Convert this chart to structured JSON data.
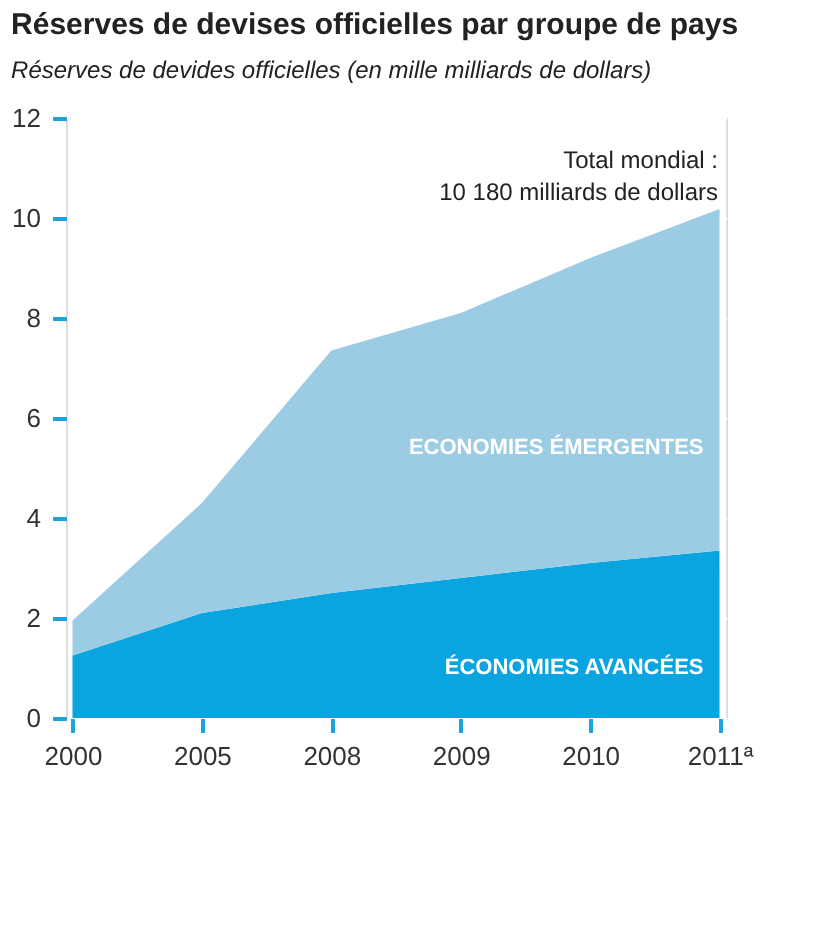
{
  "chart_data": {
    "type": "area",
    "title": "Réserves de devises officielles par groupe de pays",
    "ylabel": "Réserves de devides officielles (en mille milliards de dollars)",
    "categories": [
      "2000",
      "2005",
      "2008",
      "2009",
      "2010",
      "2011ª"
    ],
    "stacked": true,
    "series": [
      {
        "name": "ÉCONOMIES AVANCÉES",
        "color": "#0aa5e0",
        "values": [
          1.25,
          2.1,
          2.5,
          2.8,
          3.1,
          3.35
        ]
      },
      {
        "name": "ECONOMIES ÉMERGENTES",
        "color": "#9ccbe4",
        "values": [
          0.7,
          2.2,
          4.85,
          5.3,
          6.1,
          6.83
        ]
      }
    ],
    "ylim": [
      0,
      12
    ],
    "yticks": [
      0,
      2,
      4,
      6,
      8,
      10,
      12
    ],
    "grid": "y",
    "legend": false,
    "annotations": [
      "Total mondial :\n10 180 milliards de dollars"
    ]
  }
}
